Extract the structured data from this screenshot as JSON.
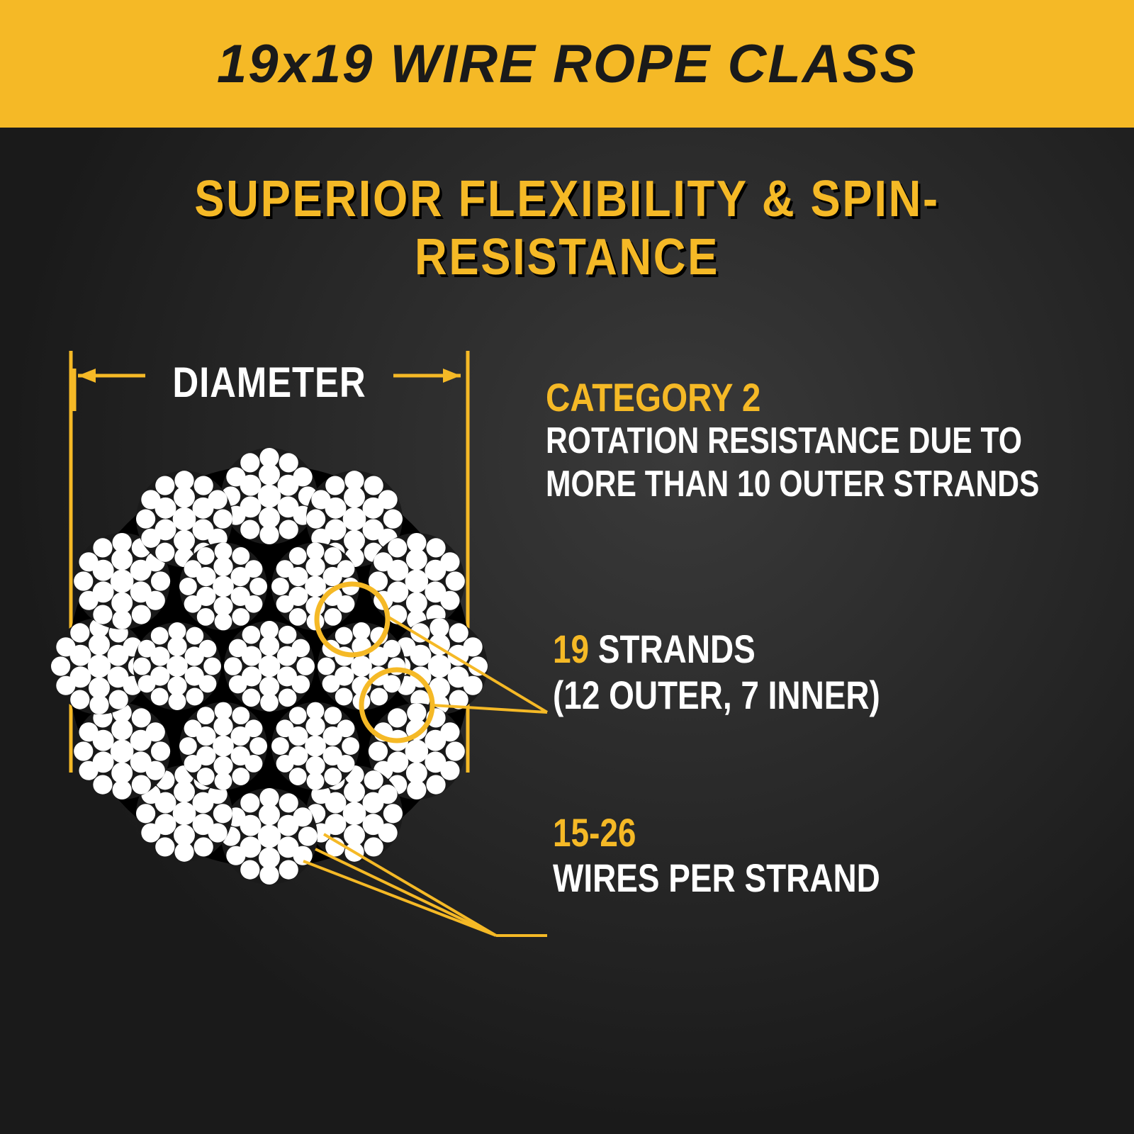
{
  "header": {
    "title": "19x19 WIRE ROPE CLASS"
  },
  "subtitle": "SUPERIOR FLEXIBILITY & SPIN-RESISTANCE",
  "diameter_label": "DIAMETER",
  "callouts": {
    "category": {
      "head": "CATEGORY 2",
      "body": "ROTATION RESISTANCE DUE TO MORE THAN 10 OUTER STRANDS"
    },
    "strands": {
      "num": "19",
      "tail": " STRANDS",
      "sub": "(12 OUTER, 7 INNER)"
    },
    "wires": {
      "num": "15-26",
      "sub": "WIRES PER STRAND"
    }
  },
  "colors": {
    "accent": "#f5b926",
    "bg_dark": "#1a1a1a",
    "text_light": "#ffffff",
    "strand_fill": "#ffffff",
    "strand_gap": "#1a1a1a"
  },
  "rope": {
    "outer_strands": 12,
    "inner_strands": 6,
    "center_strands": 1,
    "outer_radius": 240,
    "inner_radius": 130,
    "strand_r_outer": 68,
    "strand_r_inner": 62,
    "strand_r_center": 64,
    "wire_pattern": "center+6+12"
  },
  "diagram": {
    "dim_line_color": "#f5b926",
    "dim_line_width": 4,
    "leader_line_color": "#f5b926",
    "leader_line_width": 4,
    "highlight_circle_stroke": 7
  }
}
